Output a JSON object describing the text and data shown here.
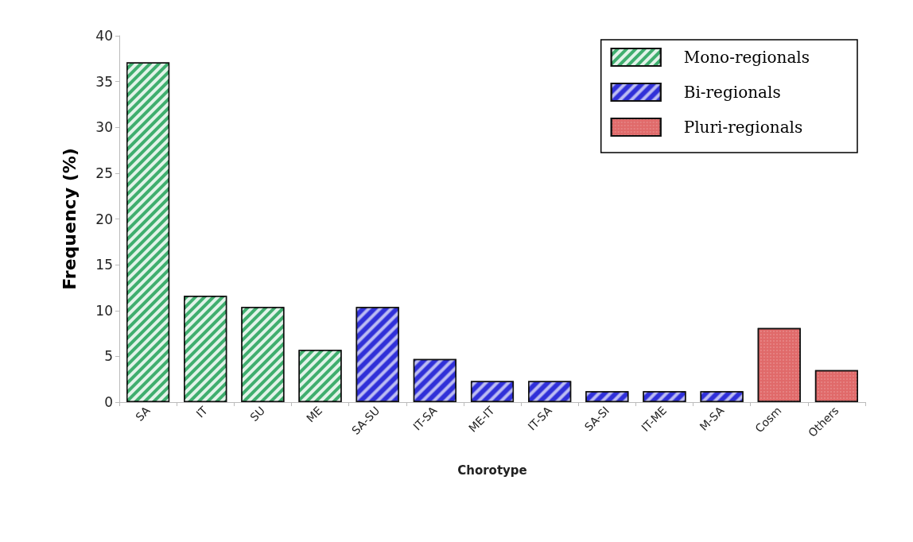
{
  "chart_data": {
    "type": "bar",
    "xlabel": "Chorotype",
    "ylabel": "Frequency (%)",
    "categories": [
      "SA",
      "IT",
      "SU",
      "ME",
      "SA-SU",
      "IT-SA",
      "ME-IT",
      "IT-SA",
      "SA-SI",
      "IT-ME",
      "M-SA",
      "Cosm",
      "Others"
    ],
    "series": [
      {
        "name": "Mono-regionals",
        "color": "#3fae6e",
        "values": [
          37.1,
          11.6,
          10.4,
          5.7,
          null,
          null,
          null,
          null,
          null,
          null,
          null,
          null,
          null
        ]
      },
      {
        "name": "Bi-regionals",
        "color": "#3030d8",
        "values": [
          null,
          null,
          null,
          null,
          10.4,
          4.7,
          2.3,
          2.3,
          1.2,
          1.2,
          1.2,
          null,
          null
        ]
      },
      {
        "name": "Pluri-regionals",
        "color": "#e06a6a",
        "values": [
          null,
          null,
          null,
          null,
          null,
          null,
          null,
          null,
          null,
          null,
          null,
          8.1,
          3.5
        ]
      }
    ],
    "ylim": [
      0,
      40
    ],
    "yticks": [
      0,
      5,
      10,
      15,
      20,
      25,
      30,
      35,
      40
    ],
    "grid": false,
    "legend": "top right"
  }
}
